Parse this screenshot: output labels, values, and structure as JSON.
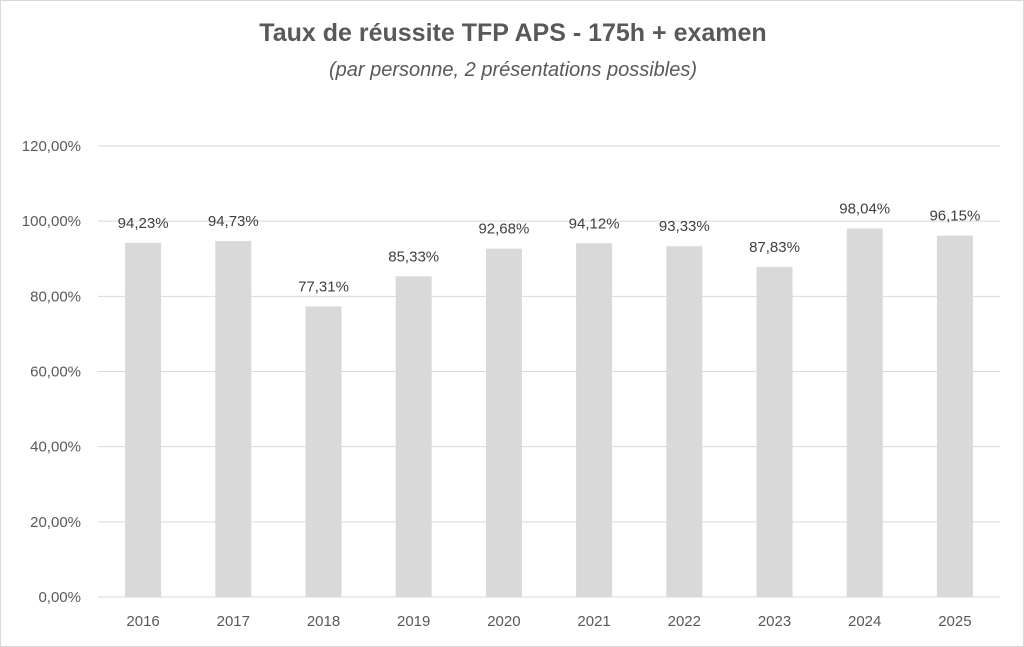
{
  "chart_data": {
    "type": "bar",
    "title": "Taux de réussite TFP APS - 175h + examen",
    "subtitle": "(par personne, 2 présentations possibles)",
    "categories": [
      "2016",
      "2017",
      "2018",
      "2019",
      "2020",
      "2021",
      "2022",
      "2023",
      "2024",
      "2025"
    ],
    "values": [
      94.23,
      94.73,
      77.31,
      85.33,
      92.68,
      94.12,
      93.33,
      87.83,
      98.04,
      96.15
    ],
    "data_labels": [
      "94,23%",
      "94,73%",
      "77,31%",
      "85,33%",
      "92,68%",
      "94,12%",
      "93,33%",
      "87,83%",
      "98,04%",
      "96,15%"
    ],
    "ylim": [
      0,
      120
    ],
    "yticks": [
      0,
      20,
      40,
      60,
      80,
      100,
      120
    ],
    "ytick_labels": [
      "0,00%",
      "20,00%",
      "40,00%",
      "60,00%",
      "80,00%",
      "100,00%",
      "120,00%"
    ],
    "xlabel": "",
    "ylabel": "",
    "grid": true,
    "legend": "none",
    "bar_color": "#d9d9d9",
    "grid_color": "#d9d9d9"
  }
}
